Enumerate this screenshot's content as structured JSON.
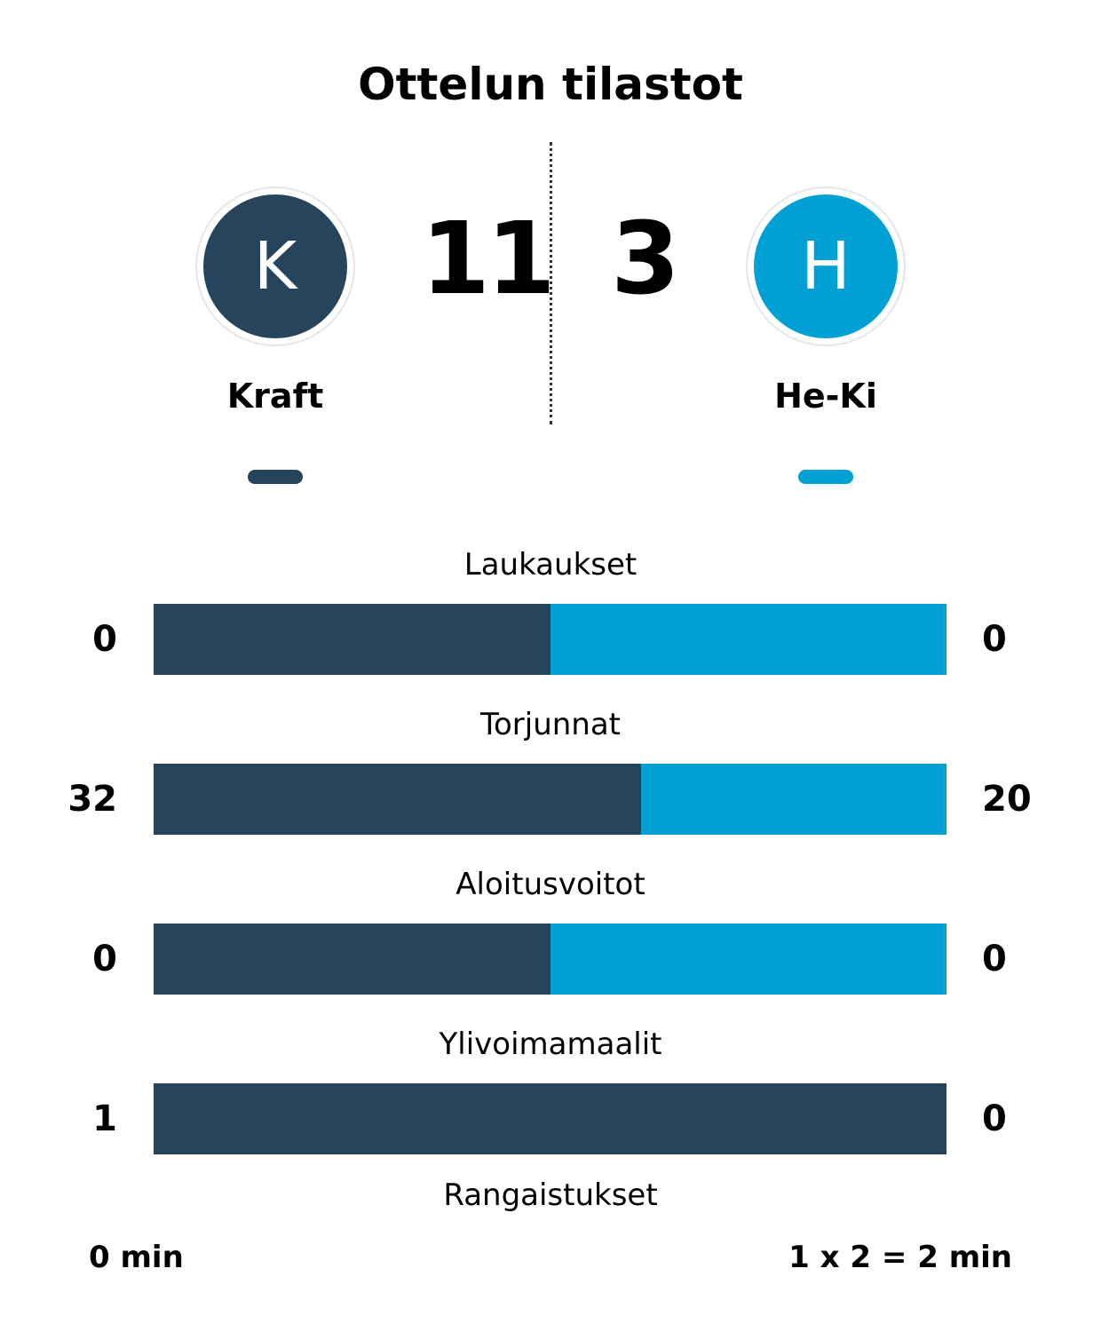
{
  "title": "Ottelun tilastot",
  "colors": {
    "home": "#26445c",
    "away": "#00a0d4",
    "divider": "#333333"
  },
  "home": {
    "name": "Kraft",
    "initial": "K",
    "score": "11",
    "logo_icon": "team-logo-icon"
  },
  "away": {
    "name": "He-Ki",
    "initial": "H",
    "score": "3",
    "logo_icon": "team-logo-icon"
  },
  "stats": [
    {
      "label": "Laukaukset",
      "home": "0",
      "away": "0",
      "home_share": 0.5
    },
    {
      "label": "Torjunnat",
      "home": "32",
      "away": "20",
      "home_share": 0.615
    },
    {
      "label": "Aloitusvoitot",
      "home": "0",
      "away": "0",
      "home_share": 0.5
    },
    {
      "label": "Ylivoimamaalit",
      "home": "1",
      "away": "0",
      "home_share": 1.0
    }
  ],
  "penalties": {
    "label": "Rangaistukset",
    "home": "0 min",
    "away": "1 x 2 = 2 min"
  }
}
